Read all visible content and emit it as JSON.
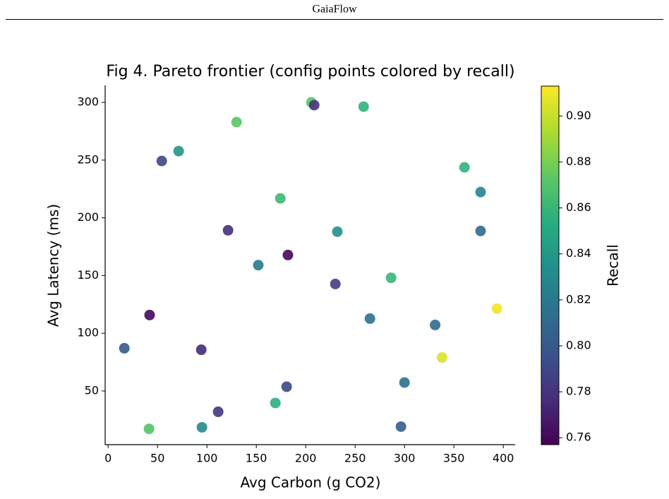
{
  "header": {
    "title": "GaiaFlow"
  },
  "chart_data": {
    "type": "scatter",
    "title": "Fig 4. Pareto frontier (config points colored by recall)",
    "x_label": "Avg Carbon (g CO2)",
    "y_label": "Avg Latency (ms)",
    "colorbar_label": "Recall",
    "colormap": "viridis",
    "x": [
      205.7,
      208.6,
      258.6,
      130,
      71.4,
      54.3,
      360.7,
      377,
      174.3,
      121.4,
      232,
      377,
      182,
      152,
      286.4,
      230,
      42,
      393.6,
      265,
      331,
      16.4,
      94.3,
      338,
      300,
      180.7,
      169.3,
      111.4,
      41.4,
      95,
      296.4
    ],
    "series": [
      {
        "name": "Recall",
        "values": [
          300,
          297.6,
          296.3,
          282.9,
          257.8,
          249.2,
          243.7,
          222.3,
          216.8,
          189.2,
          188,
          188.6,
          167.8,
          159,
          148,
          142.7,
          115.8,
          121.3,
          112.7,
          107.2,
          87,
          85.7,
          79,
          57.3,
          53.7,
          39.6,
          32,
          17.2,
          18.5,
          19.1
        ],
        "color_values": [
          0.872,
          0.78,
          0.858,
          0.872,
          0.838,
          0.79,
          0.858,
          0.828,
          0.862,
          0.778,
          0.834,
          0.81,
          0.76,
          0.82,
          0.86,
          0.785,
          0.76,
          0.91,
          0.815,
          0.81,
          0.8,
          0.775,
          0.905,
          0.815,
          0.79,
          0.855,
          0.78,
          0.87,
          0.83,
          0.805
        ]
      }
    ],
    "xlim": [
      -3,
      412
    ],
    "ylim": [
      3.5,
      314.7
    ],
    "clim": [
      0.757,
      0.913
    ],
    "xticks": [
      0,
      50,
      100,
      150,
      200,
      250,
      300,
      350,
      400
    ],
    "yticks": [
      50,
      100,
      150,
      200,
      250,
      300
    ],
    "cticks": [
      0.76,
      0.78,
      {
        "value": 0.8,
        "label": "0.80"
      },
      0.82,
      0.84,
      0.86,
      0.88,
      {
        "value": 0.9,
        "label": "0.90"
      }
    ]
  }
}
